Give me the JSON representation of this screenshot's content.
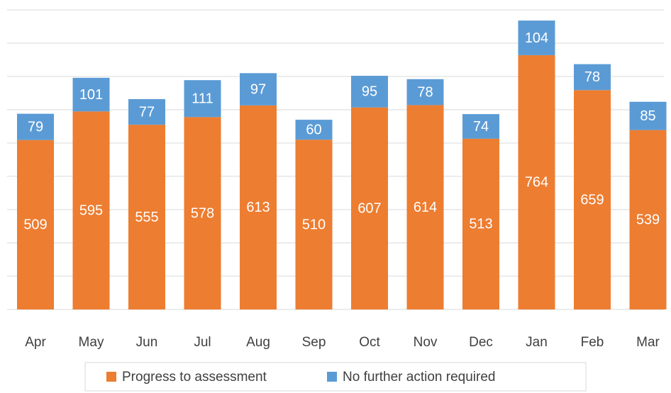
{
  "chart_data": {
    "type": "stacked_bar",
    "categories": [
      "Apr",
      "May",
      "Jun",
      "Jul",
      "Aug",
      "Sep",
      "Oct",
      "Nov",
      "Dec",
      "Jan",
      "Feb",
      "Mar"
    ],
    "series": [
      {
        "name": "Progress to assessment",
        "color": "#ed7d31",
        "values": [
          509,
          595,
          555,
          578,
          613,
          510,
          607,
          614,
          513,
          764,
          659,
          539
        ]
      },
      {
        "name": "No further action required",
        "color": "#5b9bd5",
        "values": [
          79,
          101,
          77,
          111,
          97,
          60,
          95,
          78,
          74,
          104,
          78,
          85
        ]
      }
    ],
    "ylim": [
      0,
      900
    ],
    "yticks": [
      0,
      100,
      200,
      300,
      400,
      500,
      600,
      700,
      800,
      900
    ],
    "grid": true,
    "legend": "bottom"
  }
}
